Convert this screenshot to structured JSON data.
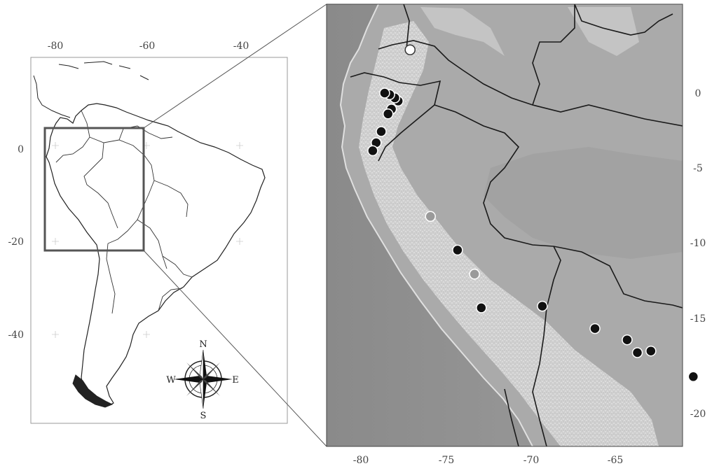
{
  "left_map": {
    "x_ticks": [
      "-80",
      "-60",
      "-40"
    ],
    "y_ticks": [
      "0",
      "-20",
      "-40"
    ]
  },
  "right_map": {
    "x_ticks": [
      "-80",
      "-75",
      "-70",
      "-65"
    ],
    "y_ticks": [
      "0",
      "-5",
      "-10",
      "-15",
      "-20"
    ]
  },
  "compass": {
    "n": "N",
    "s": "S",
    "e": "E",
    "w": "W"
  },
  "sites": [
    {
      "lon": -77.1,
      "lat": 2.7,
      "type": "white"
    },
    {
      "lon": -77.8,
      "lat": -0.5,
      "type": "black"
    },
    {
      "lon": -78.0,
      "lat": -0.3,
      "type": "black"
    },
    {
      "lon": -78.3,
      "lat": -0.1,
      "type": "black"
    },
    {
      "lon": -78.6,
      "lat": 0.0,
      "type": "black"
    },
    {
      "lon": -78.2,
      "lat": -1.0,
      "type": "black"
    },
    {
      "lon": -78.4,
      "lat": -1.3,
      "type": "black"
    },
    {
      "lon": -78.8,
      "lat": -2.4,
      "type": "black"
    },
    {
      "lon": -79.1,
      "lat": -3.1,
      "type": "black"
    },
    {
      "lon": -79.3,
      "lat": -3.6,
      "type": "black"
    },
    {
      "lon": -75.9,
      "lat": -7.7,
      "type": "grey"
    },
    {
      "lon": -74.3,
      "lat": -9.8,
      "type": "black"
    },
    {
      "lon": -73.3,
      "lat": -11.3,
      "type": "grey"
    },
    {
      "lon": -72.9,
      "lat": -13.4,
      "type": "black"
    },
    {
      "lon": -69.3,
      "lat": -13.3,
      "type": "black"
    },
    {
      "lon": -66.2,
      "lat": -14.7,
      "type": "black"
    },
    {
      "lon": -64.3,
      "lat": -15.4,
      "type": "black"
    },
    {
      "lon": -63.7,
      "lat": -16.2,
      "type": "black"
    },
    {
      "lon": -62.9,
      "lat": -16.1,
      "type": "black"
    },
    {
      "lon": -60.4,
      "lat": -17.7,
      "type": "black"
    }
  ],
  "colors": {
    "site_black": "#111111",
    "site_grey": "#9a9a9a",
    "site_white": "#ffffff",
    "ocean": "#9c9c9c",
    "lowland": "#a8a8a8",
    "andes": "#c9c9c9"
  }
}
